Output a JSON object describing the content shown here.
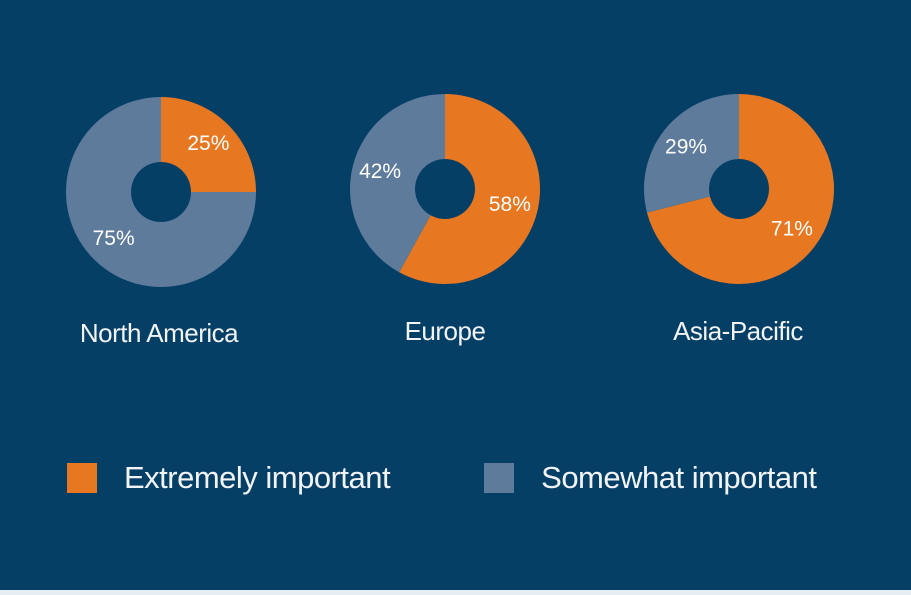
{
  "chart_data": [
    {
      "type": "pie",
      "title": "North America",
      "categories": [
        "Extremely important",
        "Somewhat important"
      ],
      "values": [
        25,
        75
      ],
      "value_labels": [
        "25%",
        "75%"
      ]
    },
    {
      "type": "pie",
      "title": "Europe",
      "categories": [
        "Extremely important",
        "Somewhat important"
      ],
      "values": [
        58,
        42
      ],
      "value_labels": [
        "58%",
        "42%"
      ]
    },
    {
      "type": "pie",
      "title": "Asia-Pacific",
      "categories": [
        "Extremely important",
        "Somewhat important"
      ],
      "values": [
        71,
        29
      ],
      "value_labels": [
        "71%",
        "29%"
      ]
    }
  ],
  "legend": {
    "placement": "bottom",
    "items": [
      {
        "label": "Extremely important",
        "color": "#e87722"
      },
      {
        "label": "Somewhat important",
        "color": "#5e7b9c"
      }
    ]
  },
  "colors": {
    "background": "#063f66",
    "extremely": "#e87722",
    "somewhat": "#5e7b9c",
    "text": "#f1f3f5"
  }
}
